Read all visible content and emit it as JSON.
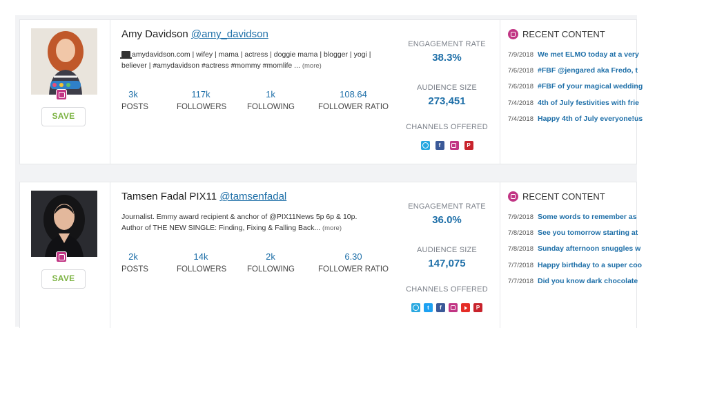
{
  "influencers": [
    {
      "name": "Amy Davidson",
      "handle": "@amy_davidson",
      "bio_line1": "amydavidson.com | wifey | mama | actress | doggie mama | blogger | yogi |",
      "bio_line2": "believer | #amydavidson #actress #mommy #momlife ...",
      "more": "(more)",
      "save_label": "SAVE",
      "stats": [
        {
          "value": "3k",
          "label": "POSTS"
        },
        {
          "value": "117k",
          "label": "FOLLOWERS"
        },
        {
          "value": "1k",
          "label": "FOLLOWING"
        },
        {
          "value": "108.64",
          "label": "FOLLOWER RATIO"
        }
      ],
      "engagement_label": "ENGAGEMENT RATE",
      "engagement_value": "38.3%",
      "audience_label": "AUDIENCE SIZE",
      "audience_value": "273,451",
      "channels_label": "CHANNELS OFFERED",
      "channels": [
        "blog-icon",
        "facebook-icon",
        "instagram-icon",
        "pinterest-icon"
      ],
      "recent_title": "RECENT CONTENT",
      "recent": [
        {
          "date": "7/9/2018",
          "text": "We met ELMO today at a very"
        },
        {
          "date": "7/6/2018",
          "text": "#FBF @jengared aka Fredo, t"
        },
        {
          "date": "7/6/2018",
          "text": "#FBF of your magical wedding"
        },
        {
          "date": "7/4/2018",
          "text": "4th of July festivities with frie"
        },
        {
          "date": "7/4/2018",
          "text": "Happy 4th of July everyone!us"
        }
      ]
    },
    {
      "name": "Tamsen Fadal PIX11",
      "handle": "@tamsenfadal",
      "bio_line1": "Journalist. Emmy award recipient & anchor of @PIX11News 5p 6p & 10p.",
      "bio_line2": "Author of THE NEW SINGLE: Finding, Fixing & Falling Back...",
      "more": "(more)",
      "save_label": "SAVE",
      "stats": [
        {
          "value": "2k",
          "label": "POSTS"
        },
        {
          "value": "14k",
          "label": "FOLLOWERS"
        },
        {
          "value": "2k",
          "label": "FOLLOWING"
        },
        {
          "value": "6.30",
          "label": "FOLLOWER RATIO"
        }
      ],
      "engagement_label": "ENGAGEMENT RATE",
      "engagement_value": "36.0%",
      "audience_label": "AUDIENCE SIZE",
      "audience_value": "147,075",
      "channels_label": "CHANNELS OFFERED",
      "channels": [
        "blog-icon",
        "twitter-icon",
        "facebook-icon",
        "instagram-icon",
        "youtube-icon",
        "pinterest-icon"
      ],
      "channel_glyphs": {
        "facebook": "f",
        "pinterest": "P",
        "twitter": "t"
      },
      "recent_title": "RECENT CONTENT",
      "recent": [
        {
          "date": "7/9/2018",
          "text": "Some words to remember as"
        },
        {
          "date": "7/8/2018",
          "text": "See you tomorrow starting at"
        },
        {
          "date": "7/8/2018",
          "text": "Sunday afternoon snuggles w"
        },
        {
          "date": "7/7/2018",
          "text": "Happy birthday to a super coo"
        },
        {
          "date": "7/7/2018",
          "text": "Did you know dark chocolate"
        }
      ]
    }
  ],
  "colors": {
    "accent": "#1e6fa8",
    "save_green": "#7cb342",
    "instagram": "#c13584"
  }
}
